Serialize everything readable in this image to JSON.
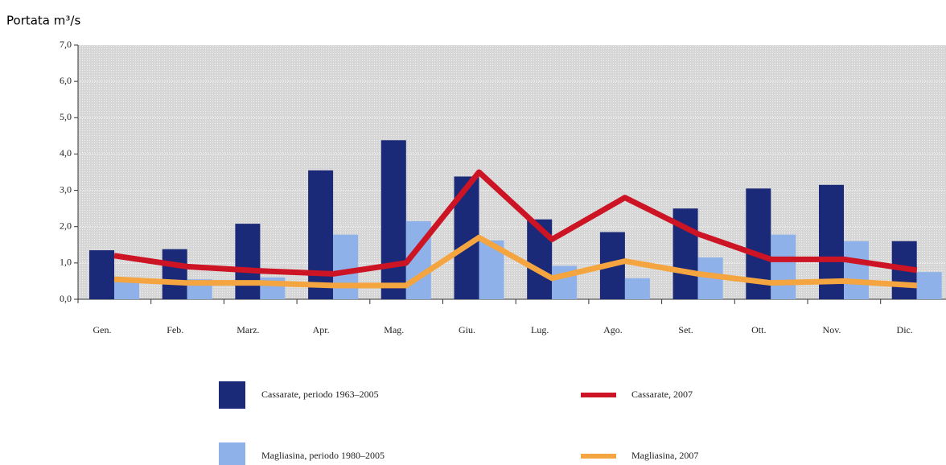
{
  "chart_data": {
    "type": "bar",
    "ylabel": "Portata m³/s",
    "categories": [
      "Gen.",
      "Feb.",
      "Marz.",
      "Apr.",
      "Mag.",
      "Giu.",
      "Lug.",
      "Ago.",
      "Set.",
      "Ott.",
      "Nov.",
      "Dic."
    ],
    "series": [
      {
        "name": "Cassarate, periodo 1963–2005",
        "type": "bar",
        "color": "#1b2a78",
        "values": [
          1.35,
          1.38,
          2.08,
          3.55,
          4.38,
          3.38,
          2.2,
          1.85,
          2.5,
          3.05,
          3.15,
          1.6
        ]
      },
      {
        "name": "Magliasina, periodo 1980–2005",
        "type": "bar",
        "color": "#8db1e8",
        "values": [
          0.6,
          0.55,
          0.6,
          1.78,
          2.15,
          1.62,
          0.92,
          0.58,
          1.15,
          1.78,
          1.6,
          0.75
        ]
      },
      {
        "name": "Cassarate, 2007",
        "type": "line",
        "color": "#cc1424",
        "values": [
          1.2,
          0.9,
          0.78,
          0.7,
          1.0,
          3.5,
          1.65,
          2.8,
          1.8,
          1.1,
          1.1,
          0.8
        ]
      },
      {
        "name": "Magliasina, 2007",
        "type": "line",
        "color": "#f4a540",
        "values": [
          0.55,
          0.45,
          0.45,
          0.38,
          0.38,
          1.7,
          0.58,
          1.05,
          0.7,
          0.45,
          0.5,
          0.38
        ]
      }
    ],
    "ylim": [
      0,
      7
    ],
    "yticks": [
      {
        "value": 0,
        "label": "0,0"
      },
      {
        "value": 1,
        "label": "1,0"
      },
      {
        "value": 2,
        "label": "2,0"
      },
      {
        "value": 3,
        "label": "3,0"
      },
      {
        "value": 4,
        "label": "4,0"
      },
      {
        "value": 5,
        "label": "5,0"
      },
      {
        "value": 6,
        "label": "6,0"
      },
      {
        "value": 7,
        "label": "7,0"
      }
    ],
    "grid": true
  }
}
